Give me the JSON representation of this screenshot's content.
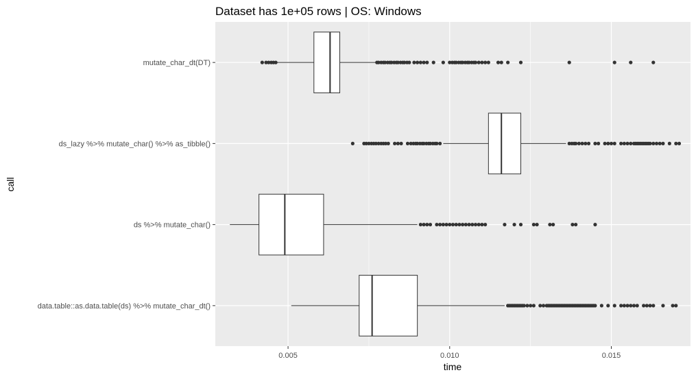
{
  "chart_data": {
    "type": "boxplot",
    "orientation": "horizontal",
    "title": "Dataset has 1e+05 rows | OS: Windows",
    "xlabel": "time",
    "ylabel": "call",
    "xlim": [
      0.00275,
      0.01745
    ],
    "x_ticks": [
      0.005,
      0.01,
      0.015
    ],
    "x_tick_labels": [
      "0.005",
      "0.010",
      "0.015"
    ],
    "grid": true,
    "colors": {
      "panel": "#ebebeb",
      "grid": "#ffffff",
      "box_fill": "#ffffff",
      "line": "#333333"
    },
    "categories": [
      "mutate_char_dt(DT)",
      "ds_lazy %>% mutate_char() %>% as_tibble()",
      "ds %>% mutate_char()",
      "data.table::as.data.table(ds) %>% mutate_char_dt()"
    ],
    "boxes": [
      {
        "category": "mutate_char_dt(DT)",
        "whisker_low": 0.00465,
        "q1": 0.0058,
        "median": 0.0063,
        "q3": 0.0066,
        "whisker_high": 0.0077,
        "outliers": [
          0.0042,
          0.00432,
          0.0044,
          0.00448,
          0.00455,
          0.00462,
          0.00775,
          0.0078,
          0.00788,
          0.00795,
          0.008,
          0.00808,
          0.00815,
          0.0082,
          0.00828,
          0.00835,
          0.0084,
          0.00848,
          0.00855,
          0.0086,
          0.00868,
          0.00875,
          0.0089,
          0.009,
          0.0091,
          0.0092,
          0.0093,
          0.0095,
          0.0098,
          0.01,
          0.01008,
          0.01015,
          0.0102,
          0.01028,
          0.01035,
          0.0104,
          0.01048,
          0.01055,
          0.0106,
          0.01068,
          0.01075,
          0.0108,
          0.0109,
          0.011,
          0.0111,
          0.0112,
          0.0115,
          0.0116,
          0.0118,
          0.0122,
          0.0137,
          0.0151,
          0.0156,
          0.0163
        ]
      },
      {
        "category": "ds_lazy %>% mutate_char() %>% as_tibble()",
        "whisker_low": 0.0098,
        "q1": 0.0112,
        "median": 0.0116,
        "q3": 0.0122,
        "whisker_high": 0.0136,
        "outliers": [
          0.007,
          0.00735,
          0.00742,
          0.0075,
          0.00758,
          0.00765,
          0.00772,
          0.0078,
          0.00788,
          0.00795,
          0.00802,
          0.0081,
          0.0083,
          0.0084,
          0.0085,
          0.0087,
          0.0088,
          0.00888,
          0.00895,
          0.009,
          0.00908,
          0.00915,
          0.0092,
          0.00928,
          0.00935,
          0.0094,
          0.00948,
          0.00955,
          0.0096,
          0.0097,
          0.0137,
          0.01378,
          0.01385,
          0.0139,
          0.014,
          0.0141,
          0.0142,
          0.0143,
          0.0145,
          0.0146,
          0.0148,
          0.0149,
          0.015,
          0.0151,
          0.0153,
          0.0154,
          0.0155,
          0.0156,
          0.0157,
          0.01575,
          0.0158,
          0.01585,
          0.0159,
          0.01595,
          0.016,
          0.01605,
          0.0161,
          0.01615,
          0.0162,
          0.0163,
          0.0164,
          0.0165,
          0.0166,
          0.0168,
          0.017,
          0.0171
        ]
      },
      {
        "category": "ds %>% mutate_char()",
        "whisker_low": 0.0032,
        "q1": 0.0041,
        "median": 0.0049,
        "q3": 0.0061,
        "whisker_high": 0.009,
        "outliers": [
          0.0091,
          0.0092,
          0.0093,
          0.0094,
          0.0096,
          0.0097,
          0.0098,
          0.0099,
          0.01,
          0.0101,
          0.0102,
          0.0103,
          0.0104,
          0.0105,
          0.0106,
          0.0107,
          0.0108,
          0.0109,
          0.011,
          0.0111,
          0.0117,
          0.012,
          0.0122,
          0.0126,
          0.0127,
          0.0131,
          0.0132,
          0.0138,
          0.0139,
          0.0145
        ]
      },
      {
        "category": "data.table::as.data.table(ds) %>% mutate_char_dt()",
        "whisker_low": 0.0051,
        "q1": 0.0072,
        "median": 0.0076,
        "q3": 0.009,
        "whisker_high": 0.0117,
        "outliers": [
          0.0118,
          0.01185,
          0.0119,
          0.01195,
          0.012,
          0.01205,
          0.0121,
          0.01215,
          0.0122,
          0.01225,
          0.0123,
          0.0124,
          0.0125,
          0.0126,
          0.0128,
          0.0129,
          0.013,
          0.01305,
          0.0131,
          0.01315,
          0.0132,
          0.01325,
          0.0133,
          0.01335,
          0.0134,
          0.01345,
          0.0135,
          0.01355,
          0.0136,
          0.01365,
          0.0137,
          0.01375,
          0.0138,
          0.01385,
          0.0139,
          0.01395,
          0.014,
          0.01405,
          0.0141,
          0.01415,
          0.0142,
          0.01425,
          0.0143,
          0.01435,
          0.0144,
          0.01445,
          0.0145,
          0.0147,
          0.0149,
          0.0151,
          0.0153,
          0.0154,
          0.0155,
          0.0156,
          0.0157,
          0.0158,
          0.016,
          0.0161,
          0.0162,
          0.0163,
          0.0166,
          0.0169,
          0.017
        ]
      }
    ]
  }
}
